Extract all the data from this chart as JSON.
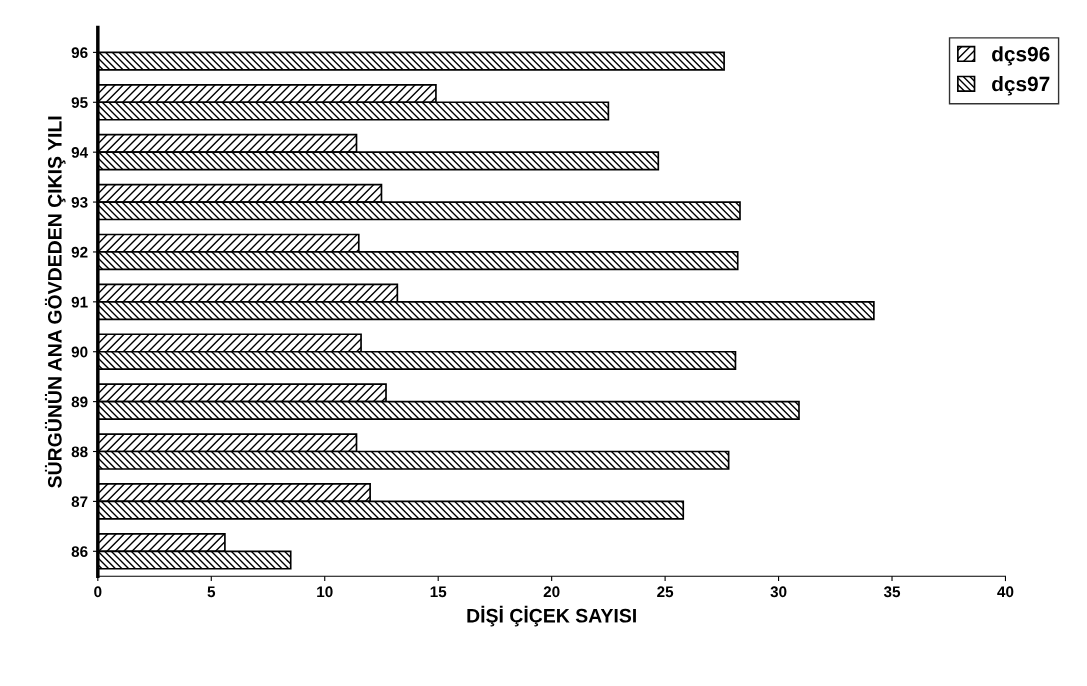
{
  "chart_data": {
    "type": "bar",
    "orientation": "horizontal",
    "xlabel": "DİŞİ ÇİÇEK SAYISI",
    "ylabel": "SÜRGÜNÜN ANA GÖVDEDEN ÇIKIŞ YILI",
    "categories": [
      "96",
      "95",
      "94",
      "93",
      "92",
      "91",
      "90",
      "89",
      "88",
      "87",
      "86"
    ],
    "series": [
      {
        "name": "dçs96",
        "color": "#000000",
        "values": [
          null,
          14.9,
          11.4,
          12.5,
          11.5,
          13.2,
          11.6,
          12.7,
          11.4,
          12.0,
          5.6
        ]
      },
      {
        "name": "dçs97",
        "color": "#000000",
        "values": [
          27.6,
          22.5,
          24.7,
          28.3,
          28.2,
          34.2,
          28.1,
          30.9,
          27.8,
          25.8,
          8.5
        ]
      }
    ],
    "xlim": [
      0,
      40
    ],
    "xticks": [
      0,
      5,
      10,
      15,
      20,
      25,
      30,
      35,
      40
    ],
    "grid": false,
    "legend": "top right"
  }
}
